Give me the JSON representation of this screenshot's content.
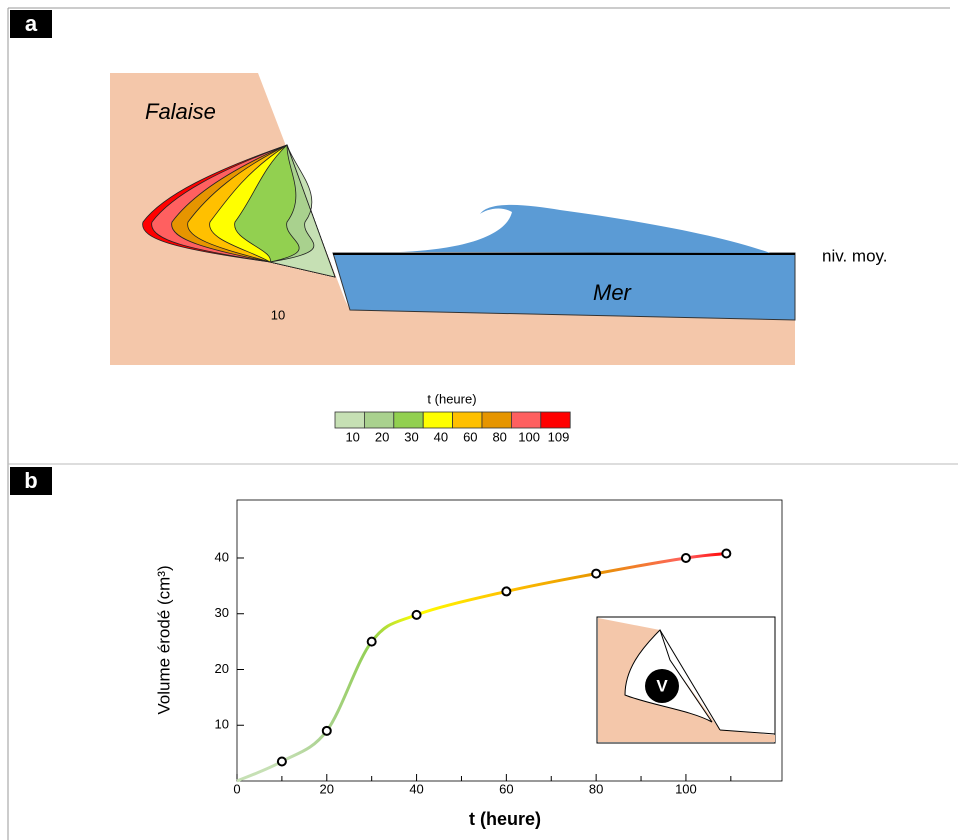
{
  "panel_a": {
    "label": "a",
    "cliff_label": "Falaise",
    "sea_label": "Mer",
    "level_label": "niv. moy.",
    "profile_label": "10",
    "colorbar": {
      "title": "t (heure)",
      "values": [
        10,
        20,
        30,
        40,
        60,
        80,
        100,
        109
      ],
      "colors": [
        "#c6e0b4",
        "#a9d18e",
        "#92d050",
        "#ffff00",
        "#ffc000",
        "#e69500",
        "#ff6060",
        "#ff0000"
      ]
    }
  },
  "chart_data": {
    "type": "line",
    "panel_label": "b",
    "xlabel": "t (heure)",
    "ylabel": "Volume érodé (cm³)",
    "x": [
      0,
      10,
      20,
      30,
      40,
      60,
      80,
      100,
      109
    ],
    "series": [
      {
        "values": [
          0,
          3.5,
          9,
          25,
          29.8,
          34,
          37.2,
          40,
          40.8
        ]
      }
    ],
    "xlim": [
      0,
      121.4
    ],
    "ylim": [
      0,
      50.4
    ],
    "xticks": [
      0,
      20,
      40,
      60,
      80,
      100
    ],
    "xminorticks": [
      10,
      30,
      50,
      70,
      90,
      110
    ],
    "yticks": [
      10,
      20,
      30,
      40
    ],
    "inset_label": "V"
  }
}
